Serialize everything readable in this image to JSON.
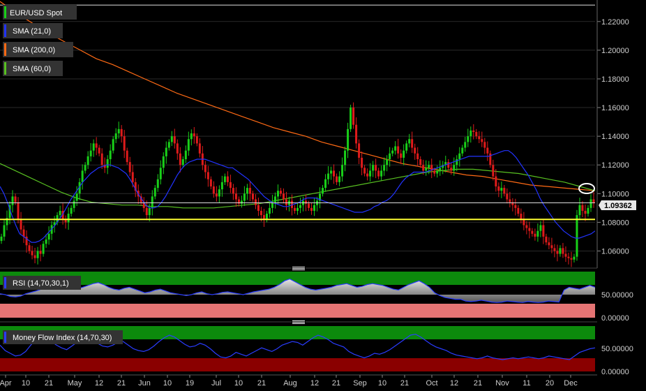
{
  "colors": {
    "background": "#000000",
    "grid": "#2a2a2a",
    "up_candle": "#19d019",
    "down_candle": "#e01b1b",
    "sma21": "#2233ff",
    "sma200": "#ff6a14",
    "sma60": "#58c021",
    "support_line": "#ffff33",
    "rsi_line": "#2a3cff",
    "overbought_zone": "#0c8a0c",
    "oversold_zone_rsi": "#e57474",
    "oversold_zone_mfi": "#8a0000",
    "label_bg": "#333333",
    "price_tag_bg": "#e8e8e8"
  },
  "legend": {
    "price": {
      "label": "EUR/USD Spot",
      "color": "#19d019"
    },
    "sma21": {
      "label": "SMA (21,0)",
      "color": "#2233ff"
    },
    "sma200": {
      "label": "SMA (200,0)",
      "color": "#ff6a14"
    },
    "sma60": {
      "label": "SMA (60,0)",
      "color": "#58c021"
    }
  },
  "price_tag": "1.09362",
  "indicators": {
    "rsi": {
      "label": "RSI (14,70,30,1)",
      "ticks": [
        "50.00000",
        "0.00000"
      ]
    },
    "mfi": {
      "label": "Money Flow Index (14,70,30)",
      "ticks": [
        "50.00000",
        "0.00000"
      ]
    }
  },
  "chart_data": {
    "type": "candlestick",
    "instrument": "EUR/USD Spot",
    "y_ticks": [
      "1.22000",
      "1.20000",
      "1.18000",
      "1.16000",
      "1.14000",
      "1.12000",
      "1.10000",
      "1.08000",
      "1.06000"
    ],
    "ylim": [
      1.05,
      1.235
    ],
    "x_ticks": [
      "Apr",
      "10",
      "21",
      "May",
      "12",
      "21",
      "Jun",
      "10",
      "19",
      "Jul",
      "10",
      "21",
      "Aug",
      "12",
      "21",
      "Sep",
      "10",
      "21",
      "Oct",
      "12",
      "21",
      "Nov",
      "11",
      "20",
      "Dec"
    ],
    "last_price": 1.09362,
    "horizontal_lines": [
      1.0936,
      1.082,
      1.2315
    ],
    "closes": [
      1.07,
      1.078,
      1.083,
      1.092,
      1.098,
      1.094,
      1.082,
      1.075,
      1.07,
      1.064,
      1.06,
      1.057,
      1.055,
      1.06,
      1.058,
      1.065,
      1.068,
      1.072,
      1.078,
      1.08,
      1.085,
      1.088,
      1.082,
      1.08,
      1.086,
      1.09,
      1.095,
      1.1,
      1.108,
      1.116,
      1.12,
      1.126,
      1.13,
      1.135,
      1.132,
      1.128,
      1.12,
      1.118,
      1.124,
      1.13,
      1.138,
      1.142,
      1.145,
      1.14,
      1.13,
      1.122,
      1.115,
      1.108,
      1.102,
      1.098,
      1.094,
      1.09,
      1.085,
      1.09,
      1.098,
      1.104,
      1.11,
      1.118,
      1.126,
      1.132,
      1.136,
      1.14,
      1.135,
      1.128,
      1.12,
      1.124,
      1.13,
      1.138,
      1.142,
      1.14,
      1.135,
      1.128,
      1.12,
      1.115,
      1.11,
      1.105,
      1.1,
      1.098,
      1.103,
      1.108,
      1.112,
      1.108,
      1.104,
      1.1,
      1.096,
      1.093,
      1.095,
      1.1,
      1.104,
      1.1,
      1.096,
      1.092,
      1.088,
      1.085,
      1.082,
      1.086,
      1.09,
      1.094,
      1.098,
      1.102,
      1.1,
      1.096,
      1.092,
      1.095,
      1.09,
      1.088,
      1.09,
      1.092,
      1.095,
      1.093,
      1.09,
      1.088,
      1.092,
      1.095,
      1.1,
      1.104,
      1.11,
      1.114,
      1.116,
      1.112,
      1.108,
      1.112,
      1.12,
      1.13,
      1.145,
      1.16,
      1.148,
      1.135,
      1.125,
      1.118,
      1.114,
      1.112,
      1.116,
      1.12,
      1.116,
      1.112,
      1.116,
      1.12,
      1.124,
      1.128,
      1.13,
      1.133,
      1.128,
      1.125,
      1.13,
      1.135,
      1.138,
      1.132,
      1.128,
      1.124,
      1.12,
      1.116,
      1.118,
      1.12,
      1.116,
      1.114,
      1.116,
      1.118,
      1.12,
      1.122,
      1.118,
      1.116,
      1.12,
      1.124,
      1.128,
      1.132,
      1.136,
      1.14,
      1.144,
      1.143,
      1.14,
      1.138,
      1.136,
      1.132,
      1.128,
      1.12,
      1.112,
      1.105,
      1.102,
      1.104,
      1.1,
      1.096,
      1.094,
      1.092,
      1.09,
      1.086,
      1.082,
      1.078,
      1.076,
      1.074,
      1.072,
      1.07,
      1.074,
      1.078,
      1.07,
      1.066,
      1.064,
      1.062,
      1.06,
      1.058,
      1.062,
      1.058,
      1.056,
      1.055,
      1.054,
      1.056,
      1.085,
      1.092,
      1.088,
      1.086,
      1.09,
      1.096,
      1.09362
    ],
    "sma21": [
      1.105,
      1.1,
      1.093,
      1.085,
      1.078,
      1.072,
      1.07,
      1.068,
      1.066,
      1.066,
      1.067,
      1.069,
      1.072,
      1.075,
      1.078,
      1.082,
      1.086,
      1.091,
      1.096,
      1.1,
      1.104,
      1.108,
      1.111,
      1.114,
      1.116,
      1.118,
      1.119,
      1.12,
      1.12,
      1.119,
      1.118,
      1.116,
      1.114,
      1.11,
      1.105,
      1.1,
      1.096,
      1.092,
      1.09,
      1.09,
      1.091,
      1.094,
      1.098,
      1.103,
      1.108,
      1.113,
      1.117,
      1.12,
      1.122,
      1.123,
      1.124,
      1.124,
      1.124,
      1.123,
      1.122,
      1.121,
      1.12,
      1.119,
      1.118,
      1.118,
      1.116,
      1.114,
      1.112,
      1.11,
      1.107,
      1.104,
      1.101,
      1.098,
      1.096,
      1.094,
      1.093,
      1.092,
      1.091,
      1.091,
      1.092,
      1.093,
      1.094,
      1.096,
      1.097,
      1.097,
      1.097,
      1.096,
      1.095,
      1.094,
      1.093,
      1.092,
      1.091,
      1.09,
      1.089,
      1.088,
      1.087,
      1.087,
      1.087,
      1.088,
      1.089,
      1.091,
      1.092,
      1.094,
      1.095,
      1.097,
      1.1,
      1.104,
      1.108,
      1.111,
      1.113,
      1.115,
      1.115,
      1.115,
      1.115,
      1.116,
      1.117,
      1.118,
      1.119,
      1.12,
      1.121,
      1.122,
      1.123,
      1.124,
      1.125,
      1.126,
      1.126,
      1.126,
      1.126,
      1.126,
      1.126,
      1.127,
      1.128,
      1.129,
      1.13,
      1.13,
      1.128,
      1.125,
      1.121,
      1.117,
      1.113,
      1.108,
      1.103,
      1.097,
      1.092,
      1.088,
      1.084,
      1.08,
      1.077,
      1.074,
      1.072,
      1.07,
      1.069,
      1.069,
      1.07,
      1.071,
      1.072,
      1.074
    ],
    "sma200": [
      1.234,
      1.226,
      1.219,
      1.212,
      1.206,
      1.2,
      1.194,
      1.19,
      1.185,
      1.18,
      1.175,
      1.17,
      1.166,
      1.162,
      1.158,
      1.154,
      1.15,
      1.146,
      1.143,
      1.14,
      1.136,
      1.133,
      1.13,
      1.127,
      1.124,
      1.121,
      1.119,
      1.117,
      1.115,
      1.113,
      1.112,
      1.11,
      1.108,
      1.106,
      1.105,
      1.104,
      1.103,
      1.102
    ],
    "sma60": [
      1.121,
      1.116,
      1.111,
      1.106,
      1.101,
      1.097,
      1.094,
      1.093,
      1.092,
      1.092,
      1.091,
      1.091,
      1.09,
      1.09,
      1.09,
      1.091,
      1.092,
      1.093,
      1.095,
      1.097,
      1.099,
      1.101,
      1.103,
      1.105,
      1.107,
      1.109,
      1.111,
      1.113,
      1.115,
      1.116,
      1.117,
      1.117,
      1.116,
      1.115,
      1.114,
      1.112,
      1.11,
      1.108,
      1.105,
      1.102
    ],
    "rsi": [
      52,
      50,
      46,
      45,
      47,
      52,
      55,
      58,
      62,
      66,
      70,
      72,
      74,
      70,
      66,
      63,
      66,
      70,
      74,
      76,
      72,
      66,
      62,
      60,
      64,
      66,
      62,
      58,
      54,
      56,
      60,
      62,
      58,
      54,
      52,
      50,
      48,
      50,
      54,
      56,
      52,
      50,
      52,
      55,
      56,
      54,
      52,
      50,
      53,
      56,
      58,
      60,
      62,
      66,
      72,
      80,
      84,
      78,
      72,
      66,
      62,
      60,
      62,
      64,
      66,
      70,
      72,
      74,
      70,
      66,
      68,
      72,
      74,
      72,
      70,
      66,
      62,
      60,
      66,
      72,
      76,
      80,
      74,
      66,
      54,
      48,
      44,
      42,
      40,
      40,
      36,
      35,
      36,
      38,
      36,
      34,
      33,
      34,
      36,
      35,
      34,
      33,
      35,
      34,
      33,
      34,
      36,
      35,
      34,
      60,
      66,
      64,
      62,
      66,
      70,
      66
    ],
    "mfi": [
      58,
      46,
      40,
      34,
      36,
      44,
      58,
      70,
      78,
      74,
      66,
      58,
      52,
      48,
      56,
      64,
      72,
      76,
      70,
      62,
      56,
      54,
      58,
      64,
      66,
      58,
      50,
      46,
      44,
      48,
      56,
      66,
      74,
      80,
      76,
      68,
      60,
      54,
      56,
      62,
      58,
      50,
      40,
      32,
      30,
      34,
      42,
      38,
      34,
      40,
      46,
      52,
      48,
      44,
      50,
      58,
      62,
      66,
      64,
      58,
      66,
      74,
      80,
      76,
      70,
      62,
      58,
      54,
      44,
      38,
      34,
      30,
      34,
      40,
      38,
      42,
      48,
      56,
      64,
      72,
      80,
      82,
      76,
      68,
      60,
      54,
      50,
      46,
      40,
      36,
      34,
      32,
      30,
      28,
      30,
      34,
      30,
      28,
      26,
      28,
      30,
      28,
      30,
      32,
      30,
      28,
      30,
      34,
      32,
      30,
      28,
      26,
      34,
      42,
      46,
      50,
      52
    ]
  }
}
